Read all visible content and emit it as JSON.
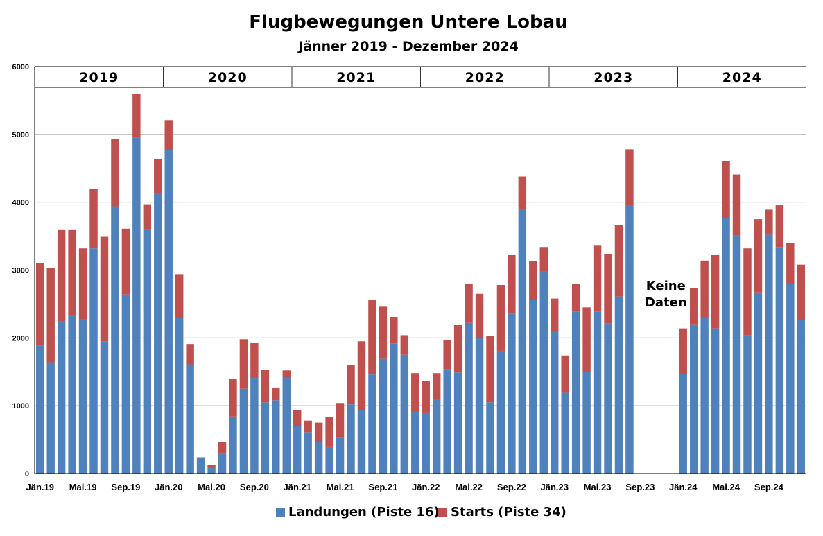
{
  "chart_data": {
    "type": "bar",
    "stacked": true,
    "title": "Flugbewegungen Untere Lobau",
    "subtitle": "Jänner 2019 - Dezember 2024",
    "ylim": [
      0,
      6000
    ],
    "yticks": [
      0,
      1000,
      2000,
      3000,
      4000,
      5000,
      6000
    ],
    "grid": true,
    "legend_position": "bottom",
    "years": [
      "2019",
      "2020",
      "2021",
      "2022",
      "2023",
      "2024"
    ],
    "x_tick_labels": [
      {
        "month_index": 0,
        "label": "Jän.19"
      },
      {
        "month_index": 4,
        "label": "Mai.19"
      },
      {
        "month_index": 8,
        "label": "Sep.19"
      },
      {
        "month_index": 12,
        "label": "Jän.20"
      },
      {
        "month_index": 16,
        "label": "Mai.20"
      },
      {
        "month_index": 20,
        "label": "Sep.20"
      },
      {
        "month_index": 24,
        "label": "Jän.21"
      },
      {
        "month_index": 28,
        "label": "Mai.21"
      },
      {
        "month_index": 32,
        "label": "Sep.21"
      },
      {
        "month_index": 36,
        "label": "Jän.22"
      },
      {
        "month_index": 40,
        "label": "Mai.22"
      },
      {
        "month_index": 44,
        "label": "Sep.22"
      },
      {
        "month_index": 48,
        "label": "Jän.23"
      },
      {
        "month_index": 52,
        "label": "Mai.23"
      },
      {
        "month_index": 56,
        "label": "Sep.23"
      },
      {
        "month_index": 60,
        "label": "Jän.24"
      },
      {
        "month_index": 64,
        "label": "Mai.24"
      },
      {
        "month_index": 68,
        "label": "Sep.24"
      }
    ],
    "annotation": {
      "month_index": 58,
      "lines": [
        "Keine",
        "Daten"
      ]
    },
    "series": [
      {
        "name": "Landungen (Piste 16)",
        "color": "#4f81bd",
        "values": [
          1890,
          1640,
          2240,
          2330,
          2270,
          3320,
          1950,
          3940,
          2640,
          4950,
          3600,
          4120,
          4770,
          2290,
          1610,
          230,
          100,
          290,
          840,
          1250,
          1410,
          1050,
          1080,
          1430,
          700,
          610,
          460,
          400,
          540,
          1020,
          930,
          1460,
          1690,
          1920,
          1750,
          910,
          900,
          1100,
          1540,
          1490,
          2220,
          2000,
          1050,
          1810,
          2360,
          3890,
          2560,
          2980,
          2090,
          1190,
          2390,
          1500,
          2390,
          2210,
          2610,
          3950,
          null,
          null,
          null,
          null,
          1470,
          2200,
          2300,
          2140,
          3770,
          3510,
          2040,
          2670,
          3520,
          3340,
          2800,
          2260
        ]
      },
      {
        "name": "Starts (Piste 34)",
        "color": "#c0504d",
        "values": [
          1210,
          1390,
          1360,
          1270,
          1050,
          880,
          1540,
          990,
          970,
          650,
          370,
          520,
          440,
          650,
          300,
          10,
          30,
          170,
          560,
          730,
          520,
          480,
          180,
          90,
          240,
          170,
          290,
          430,
          500,
          580,
          1020,
          1100,
          770,
          390,
          290,
          570,
          460,
          380,
          430,
          700,
          580,
          650,
          980,
          970,
          860,
          490,
          570,
          360,
          490,
          550,
          410,
          950,
          970,
          1020,
          1050,
          830,
          null,
          null,
          null,
          null,
          670,
          530,
          840,
          1080,
          840,
          900,
          1280,
          1080,
          370,
          620,
          600,
          820
        ]
      }
    ]
  }
}
